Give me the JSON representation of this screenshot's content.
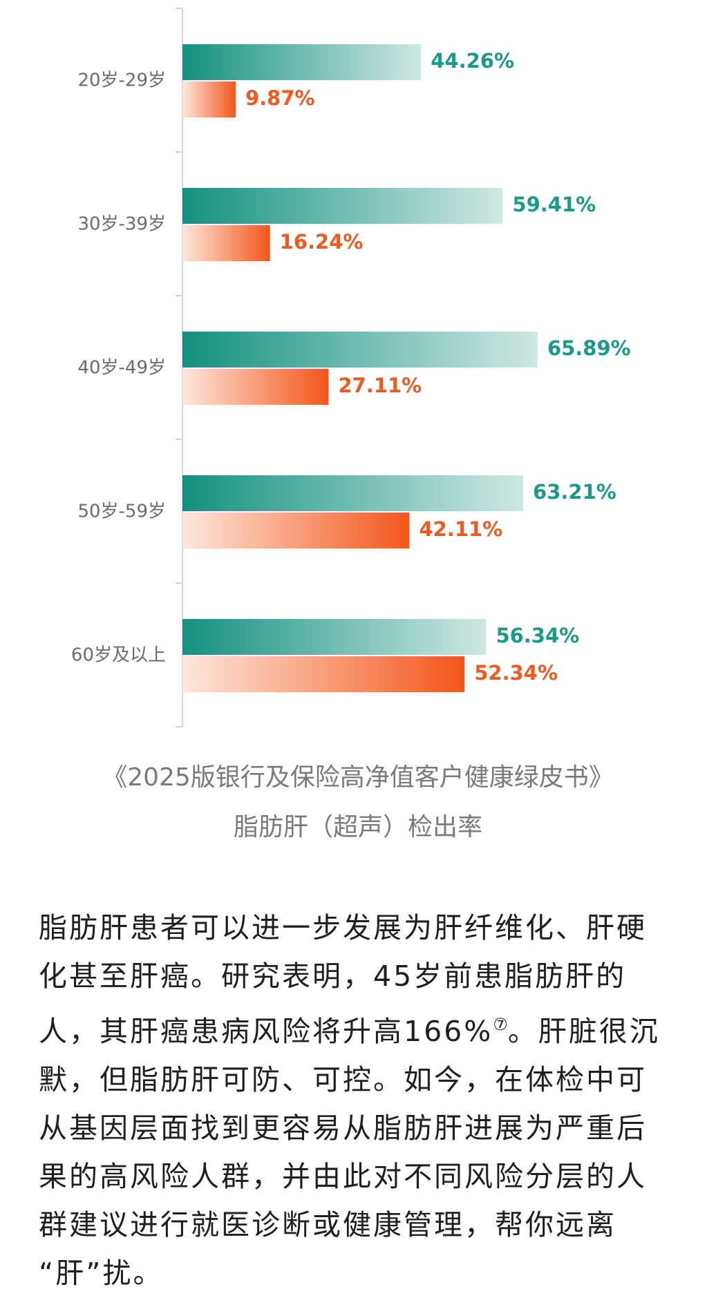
{
  "chart_data": {
    "type": "bar",
    "orientation": "horizontal",
    "categories": [
      "20岁-29岁",
      "30岁-39岁",
      "40岁-49岁",
      "50岁-59岁",
      "60岁及以上"
    ],
    "series": [
      {
        "values": [
          44.26,
          59.41,
          65.89,
          63.21,
          56.34
        ],
        "labels": [
          "44.26%",
          "59.41%",
          "65.89%",
          "63.21%",
          "56.34%"
        ],
        "color": "#1a9a88"
      },
      {
        "values": [
          9.87,
          16.24,
          27.11,
          42.11,
          52.34
        ],
        "labels": [
          "9.87%",
          "16.24%",
          "27.11%",
          "42.11%",
          "52.34%"
        ],
        "color": "#f05a1e"
      }
    ],
    "xlim": [
      0,
      100
    ],
    "grid": false,
    "legend": "none"
  },
  "captions": {
    "source": "《2025版银行及保险高净值客户健康绿皮书》",
    "title": "脂肪肝（超声）检出率"
  },
  "article": {
    "line1": "脂肪肝患者可以进一步发展为肝纤维化、肝硬",
    "line2": "化甚至肝癌。研究表明，45岁前患脂肪肝的",
    "line3a": "人，其肝癌患病风险将升高166%",
    "footnote": "⑦",
    "line3b": "。肝脏很沉",
    "line4": "默，但脂肪肝可防、可控。如今，在体检中可",
    "line5": "从基因层面找到更容易从脂肪肝进展为严重后",
    "line6": "果的高风险人群，并由此对不同风险分层的人",
    "line7": "群建议进行就医诊断或健康管理，帮你远离",
    "line8": "“肝”扰。"
  }
}
